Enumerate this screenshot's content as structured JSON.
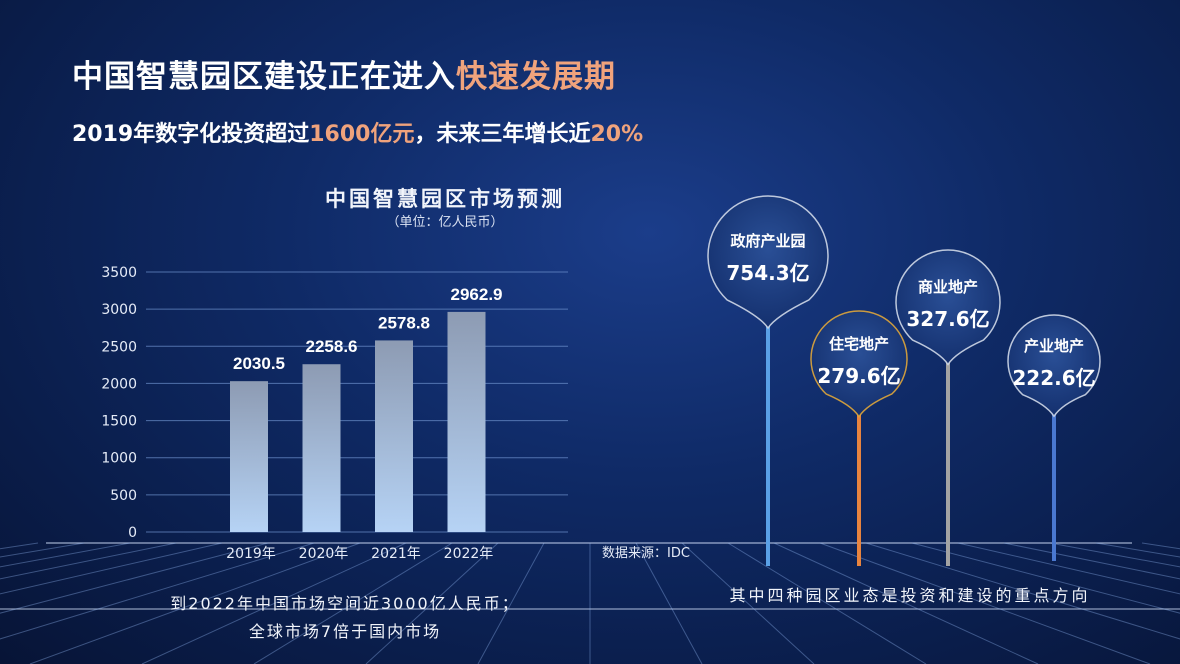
{
  "title": {
    "main": "中国智慧园区建设正在进入",
    "highlight": "快速发展期"
  },
  "subtitle": {
    "part1": "2019年数字化投资超过",
    "hl1": "1600亿元",
    "part2": "，未来三年增长近",
    "hl2": "20%"
  },
  "chart_data": {
    "type": "bar",
    "title": "中国智慧园区市场预测",
    "subtitle": "（单位：亿人民币）",
    "categories": [
      "2019年",
      "2020年",
      "2021年",
      "2022年"
    ],
    "values": [
      2030.5,
      2258.6,
      2578.8,
      2962.9
    ],
    "value_labels": [
      "2030.5",
      "2258.6",
      "2578.8",
      "2962.9"
    ],
    "yticks": [
      0,
      500,
      1000,
      1500,
      2000,
      2500,
      3000,
      3500
    ],
    "ylim": [
      0,
      3500
    ],
    "grid": true,
    "bar_color_top": "#8d9bb3",
    "bar_color_bottom": "#b6d3f5"
  },
  "source": "数据来源：IDC",
  "note_left": [
    "到2022年中国市场空间近3000亿人民币；",
    "全球市场7倍于国内市场"
  ],
  "note_right": "其中四种园区业态是投资和建设的重点方向",
  "pins": [
    {
      "name": "政府产业园",
      "value": "754.3亿",
      "color": "#5aa0e6"
    },
    {
      "name": "住宅地产",
      "value": "279.6亿",
      "color": "#e8843f"
    },
    {
      "name": "商业地产",
      "value": "327.6亿",
      "color": "#a3a3a3"
    },
    {
      "name": "产业地产",
      "value": "222.6亿",
      "color": "#4a78d0"
    }
  ]
}
